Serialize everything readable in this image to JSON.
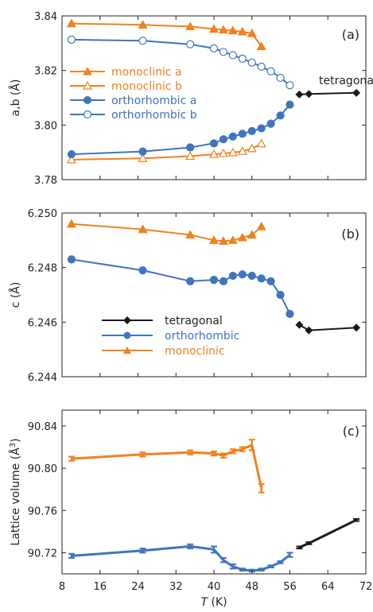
{
  "colors": {
    "monoclinic": "#F0821E",
    "orthorhombic": "#3F74BE",
    "tetragonal": "#1A1A1A",
    "axis": "#222222"
  },
  "x_axis": {
    "label_italic": "T",
    "label_rest": " (K)",
    "ticks": [
      8,
      16,
      24,
      32,
      40,
      48,
      56,
      64,
      72
    ],
    "range": [
      8,
      72
    ]
  },
  "panels": {
    "a": {
      "label": "(a)",
      "ylabel": "a,b (Å)",
      "annotation": "tetragonal",
      "legend": [
        "monoclinic a",
        "monoclinic b",
        "orthorhombic a",
        "orthorhombic b"
      ]
    },
    "b": {
      "label": "(b)",
      "ylabel": "c (Å)",
      "legend": [
        "tetragonal",
        "orthorhombic",
        "monoclinic"
      ]
    },
    "c": {
      "label": "(c)",
      "ylabel_main": "Lattice volume (Å",
      "ylabel_sup": "3",
      "ylabel_close": ")"
    }
  },
  "chart_data": [
    {
      "type": "line",
      "panel": "a",
      "ylabel": "a,b (Å)",
      "xlabel": "T (K)",
      "xlim": [
        8,
        72
      ],
      "ylim": [
        3.78,
        3.84
      ],
      "yticks": [
        "3.78",
        "3.80",
        "3.82",
        "3.84"
      ],
      "series": [
        {
          "name": "monoclinic a",
          "color": "#F0821E",
          "marker": "triangle-filled",
          "x": [
            10,
            25,
            35,
            40,
            42,
            44,
            46,
            48,
            50
          ],
          "y": [
            3.8372,
            3.8367,
            3.8361,
            3.8352,
            3.8349,
            3.8346,
            3.8342,
            3.8336,
            3.8288
          ]
        },
        {
          "name": "monoclinic b",
          "color": "#F0821E",
          "marker": "triangle-open",
          "x": [
            10,
            25,
            35,
            40,
            42,
            44,
            46,
            48,
            50
          ],
          "y": [
            3.7873,
            3.7878,
            3.7886,
            3.7893,
            3.7896,
            3.7899,
            3.7904,
            3.7914,
            3.7932
          ]
        },
        {
          "name": "orthorhombic a",
          "color": "#3F74BE",
          "marker": "circle-filled",
          "x": [
            10,
            25,
            35,
            40,
            42,
            44,
            46,
            48,
            50,
            52,
            54,
            56
          ],
          "y": [
            3.7893,
            3.7903,
            3.7918,
            3.7933,
            3.7948,
            3.7958,
            3.7968,
            3.7978,
            3.7988,
            3.8005,
            3.8035,
            3.8075
          ]
        },
        {
          "name": "orthorhombic b",
          "color": "#3F74BE",
          "marker": "circle-open",
          "x": [
            10,
            25,
            35,
            40,
            42,
            44,
            46,
            48,
            50,
            52,
            54,
            56
          ],
          "y": [
            3.8313,
            3.8309,
            3.8296,
            3.8281,
            3.8268,
            3.8256,
            3.8243,
            3.8229,
            3.8214,
            3.8197,
            3.8173,
            3.8146
          ]
        },
        {
          "name": "tetragonal",
          "color": "#1A1A1A",
          "marker": "diamond-filled",
          "x": [
            58,
            60,
            70
          ],
          "y": [
            3.8112,
            3.8114,
            3.8118
          ]
        }
      ]
    },
    {
      "type": "line",
      "panel": "b",
      "ylabel": "c (Å)",
      "xlabel": "T (K)",
      "xlim": [
        8,
        72
      ],
      "ylim": [
        6.244,
        6.25
      ],
      "yticks": [
        "6.244",
        "6.246",
        "6.248",
        "6.250"
      ],
      "series": [
        {
          "name": "tetragonal",
          "color": "#1A1A1A",
          "marker": "diamond-filled",
          "x": [
            58,
            60,
            70
          ],
          "y": [
            6.2459,
            6.2457,
            6.2458
          ]
        },
        {
          "name": "orthorhombic",
          "color": "#3F74BE",
          "marker": "circle-filled",
          "x": [
            10,
            25,
            35,
            40,
            42,
            44,
            46,
            48,
            50,
            52,
            54,
            56
          ],
          "y": [
            6.2483,
            6.2479,
            6.2475,
            6.24755,
            6.2475,
            6.2477,
            6.24775,
            6.2477,
            6.2476,
            6.2475,
            6.247,
            6.2463
          ]
        },
        {
          "name": "monoclinic",
          "color": "#F0821E",
          "marker": "triangle-filled",
          "x": [
            10,
            25,
            35,
            40,
            42,
            44,
            46,
            48,
            50
          ],
          "y": [
            6.2496,
            6.2494,
            6.2492,
            6.249,
            6.24897,
            6.249,
            6.2491,
            6.2492,
            6.2495
          ]
        }
      ]
    },
    {
      "type": "line",
      "panel": "c",
      "ylabel": "Lattice volume (Å3)",
      "xlabel": "T (K)",
      "xlim": [
        8,
        72
      ],
      "ylim": [
        90.7,
        90.855
      ],
      "yticks": [
        "90.72",
        "90.76",
        "90.80",
        "90.84"
      ],
      "error_bars": true,
      "series": [
        {
          "name": "monoclinic",
          "color": "#F0821E",
          "marker": "none",
          "x": [
            10,
            25,
            35,
            40,
            42,
            44,
            46,
            48,
            50
          ],
          "y": [
            90.809,
            90.813,
            90.815,
            90.814,
            90.812,
            90.816,
            90.818,
            90.822,
            90.781
          ],
          "err": [
            0.002,
            0.002,
            0.002,
            0.002,
            0.002,
            0.002,
            0.002,
            0.005,
            0.004
          ]
        },
        {
          "name": "orthorhombic",
          "color": "#3F74BE",
          "marker": "none",
          "x": [
            10,
            25,
            35,
            40,
            42,
            44,
            46,
            48,
            50,
            52,
            54,
            56
          ],
          "y": [
            90.717,
            90.722,
            90.726,
            90.723,
            90.713,
            90.707,
            90.704,
            90.703,
            90.704,
            90.707,
            90.711,
            90.718
          ],
          "err": [
            0.002,
            0.002,
            0.002,
            0.003,
            0.002,
            0.002,
            0.001,
            0.001,
            0.001,
            0.001,
            0.001,
            0.002
          ]
        },
        {
          "name": "tetragonal",
          "color": "#1A1A1A",
          "marker": "none",
          "x": [
            58,
            60,
            70
          ],
          "y": [
            90.725,
            90.729,
            90.751
          ],
          "err": [
            0.001,
            0.001,
            0.001
          ]
        }
      ]
    }
  ]
}
